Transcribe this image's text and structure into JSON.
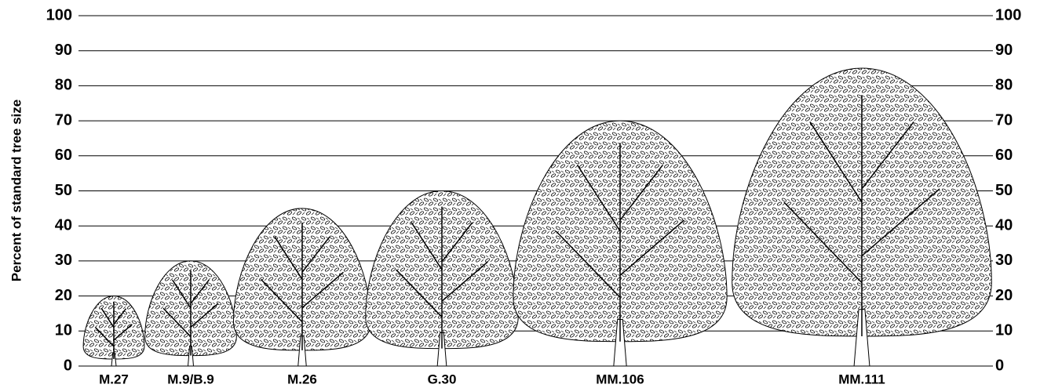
{
  "chart_data": {
    "type": "bar",
    "y_label": "Percent of standard tree size",
    "categories": [
      "M.27",
      "M.9/B.9",
      "M.26",
      "G.30",
      "MM.106",
      "MM.111"
    ],
    "values": [
      20,
      30,
      45,
      50,
      70,
      85
    ],
    "color": "#000000",
    "ylim": [
      0,
      100
    ],
    "yticks": [
      0,
      10,
      20,
      30,
      40,
      50,
      60,
      70,
      80,
      90,
      100
    ],
    "grid": true
  }
}
